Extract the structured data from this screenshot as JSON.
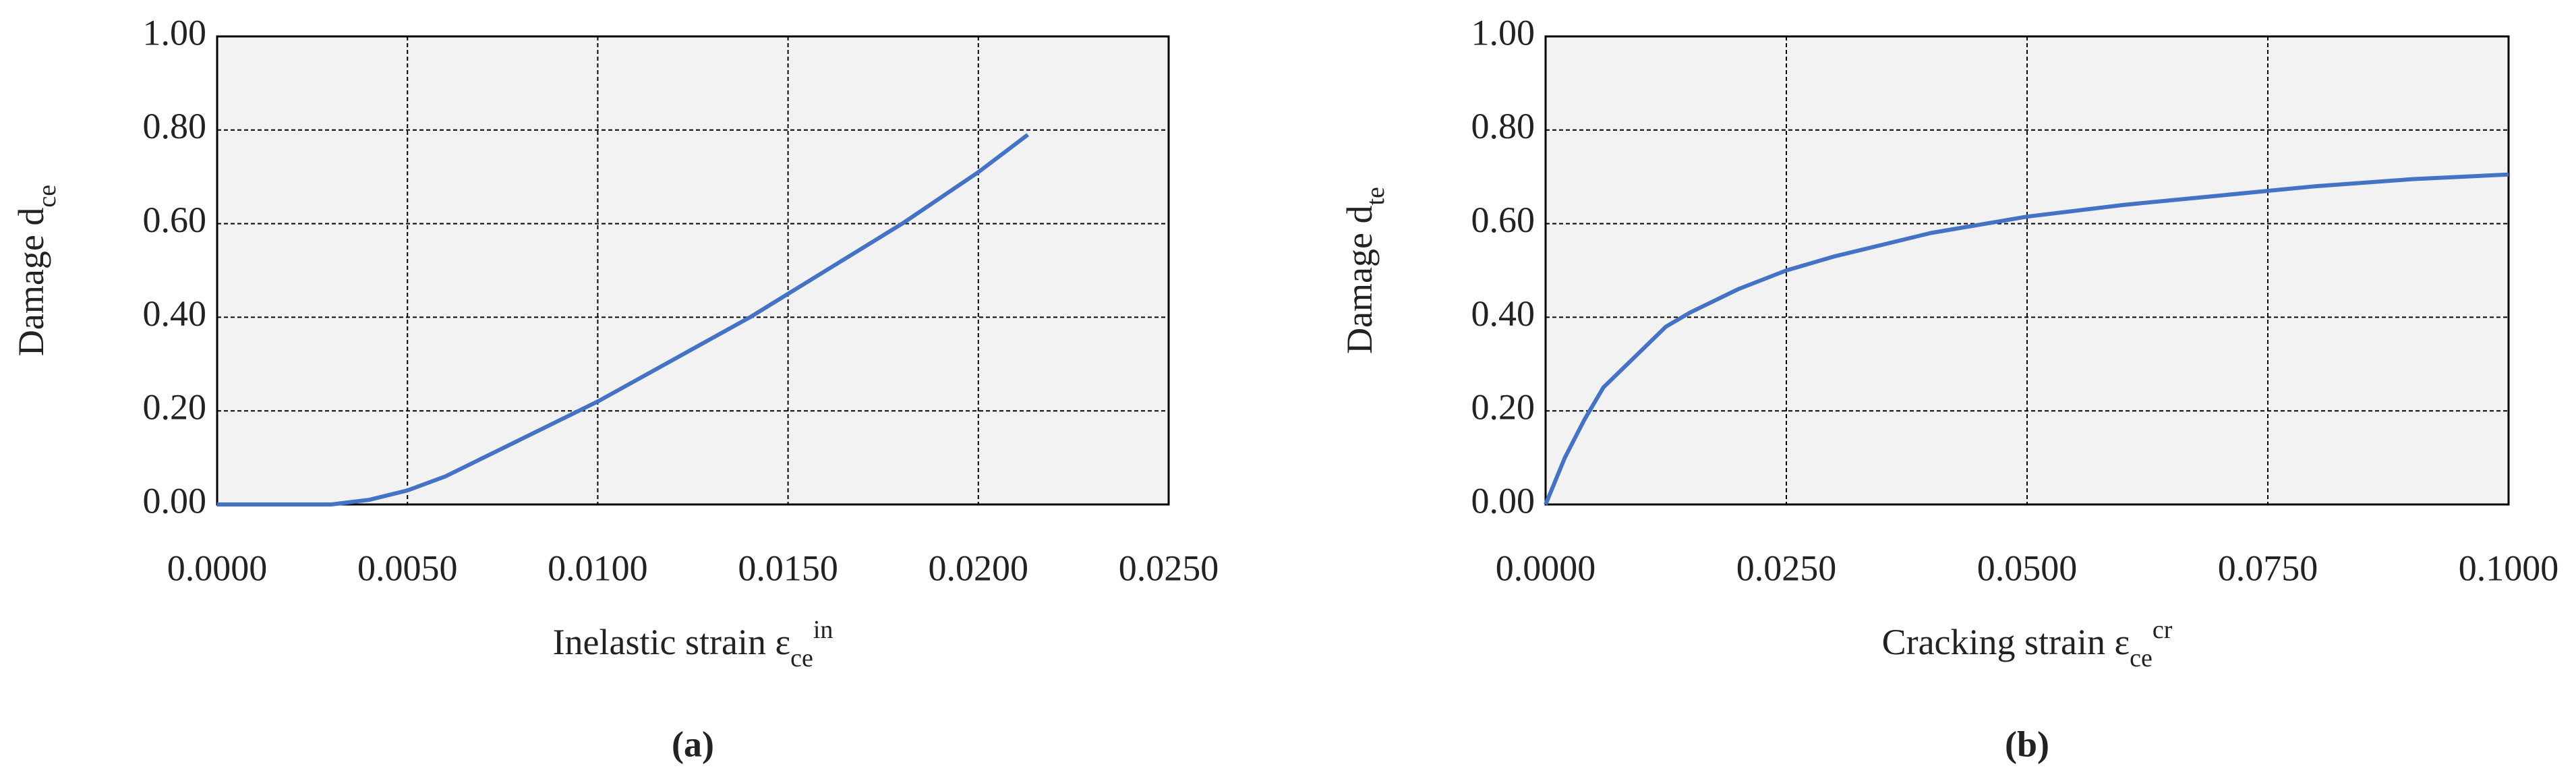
{
  "chart_data": [
    {
      "type": "line",
      "panel_label": "(a)",
      "y_label": {
        "text": "Damage d",
        "sub": "ce"
      },
      "x_label": {
        "text": "Inelastic strain ε",
        "sub": "ce",
        "sup": "in"
      },
      "x": [
        0,
        0.003,
        0.004,
        0.005,
        0.006,
        0.007,
        0.008,
        0.009,
        0.01,
        0.012,
        0.014,
        0.016,
        0.018,
        0.02,
        0.0213
      ],
      "values": [
        0,
        0,
        0.01,
        0.03,
        0.06,
        0.1,
        0.14,
        0.18,
        0.22,
        0.31,
        0.4,
        0.5,
        0.6,
        0.71,
        0.79
      ],
      "color": "#4472c4",
      "xlim": [
        0,
        0.025
      ],
      "xticks": [
        {
          "value": 0,
          "label": "0.0000"
        },
        {
          "value": 0.005,
          "label": "0.0050"
        },
        {
          "value": 0.01,
          "label": "0.0100"
        },
        {
          "value": 0.015,
          "label": "0.0150"
        },
        {
          "value": 0.02,
          "label": "0.0200"
        },
        {
          "value": 0.025,
          "label": "0.0250"
        }
      ],
      "ylim": [
        0,
        1
      ],
      "yticks": [
        {
          "value": 0,
          "label": "0.00"
        },
        {
          "value": 0.2,
          "label": "0.20"
        },
        {
          "value": 0.4,
          "label": "0.40"
        },
        {
          "value": 0.6,
          "label": "0.60"
        },
        {
          "value": 0.8,
          "label": "0.80"
        },
        {
          "value": 1,
          "label": "1.00"
        }
      ],
      "grid": true
    },
    {
      "type": "line",
      "panel_label": "(b)",
      "y_label": {
        "text": "Damage d",
        "sub": "te"
      },
      "x_label": {
        "text": "Cracking strain ε",
        "sub": "ce",
        "sup": "cr"
      },
      "x": [
        0,
        0.002,
        0.004,
        0.006,
        0.01,
        0.0125,
        0.015,
        0.02,
        0.025,
        0.03,
        0.04,
        0.05,
        0.06,
        0.07,
        0.08,
        0.09,
        0.1
      ],
      "values": [
        0,
        0.1,
        0.18,
        0.25,
        0.33,
        0.38,
        0.41,
        0.46,
        0.5,
        0.53,
        0.58,
        0.615,
        0.64,
        0.66,
        0.68,
        0.695,
        0.705
      ],
      "color": "#4472c4",
      "xlim": [
        0,
        0.1
      ],
      "xticks": [
        {
          "value": 0,
          "label": "0.0000"
        },
        {
          "value": 0.025,
          "label": "0.0250"
        },
        {
          "value": 0.05,
          "label": "0.0500"
        },
        {
          "value": 0.075,
          "label": "0.0750"
        },
        {
          "value": 0.1,
          "label": "0.1000"
        }
      ],
      "ylim": [
        0,
        1
      ],
      "yticks": [
        {
          "value": 0,
          "label": "0.00"
        },
        {
          "value": 0.2,
          "label": "0.20"
        },
        {
          "value": 0.4,
          "label": "0.40"
        },
        {
          "value": 0.6,
          "label": "0.60"
        },
        {
          "value": 0.8,
          "label": "0.80"
        },
        {
          "value": 1,
          "label": "1.00"
        }
      ],
      "grid": true
    }
  ]
}
